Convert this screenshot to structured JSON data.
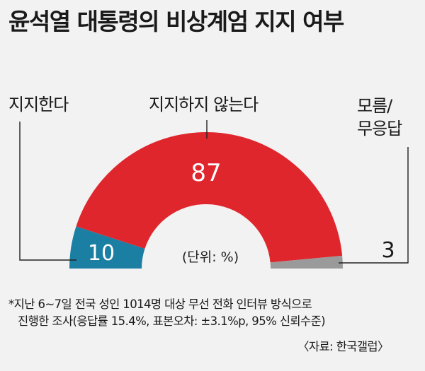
{
  "title": "윤석열 대통령의 비상계엄 지지 여부",
  "chart_data": {
    "type": "pie",
    "subtype": "semicircle donut",
    "categories": [
      "지지한다",
      "지지하지 않는다",
      "모름/\n무응답"
    ],
    "values": [
      10,
      87,
      3
    ],
    "colors": [
      "#1a7fa3",
      "#e0262d",
      "#9a9a9a"
    ],
    "unit_label": "(단위: %)"
  },
  "labels": {
    "support": "지지한다",
    "oppose": "지지하지 않는다",
    "unknown_line1": "모름/",
    "unknown_line2": "무응답"
  },
  "footnote": {
    "line1": "*지난 6~7일 전국 성인 1014명 대상 무선 전화 인터뷰 방식으로",
    "line2": "진행한 조사(응답률 15.4%, 표본오차: ±3.1%p, 95% 신뢰수준)",
    "source": "〈자료: 한국갤럽〉"
  }
}
